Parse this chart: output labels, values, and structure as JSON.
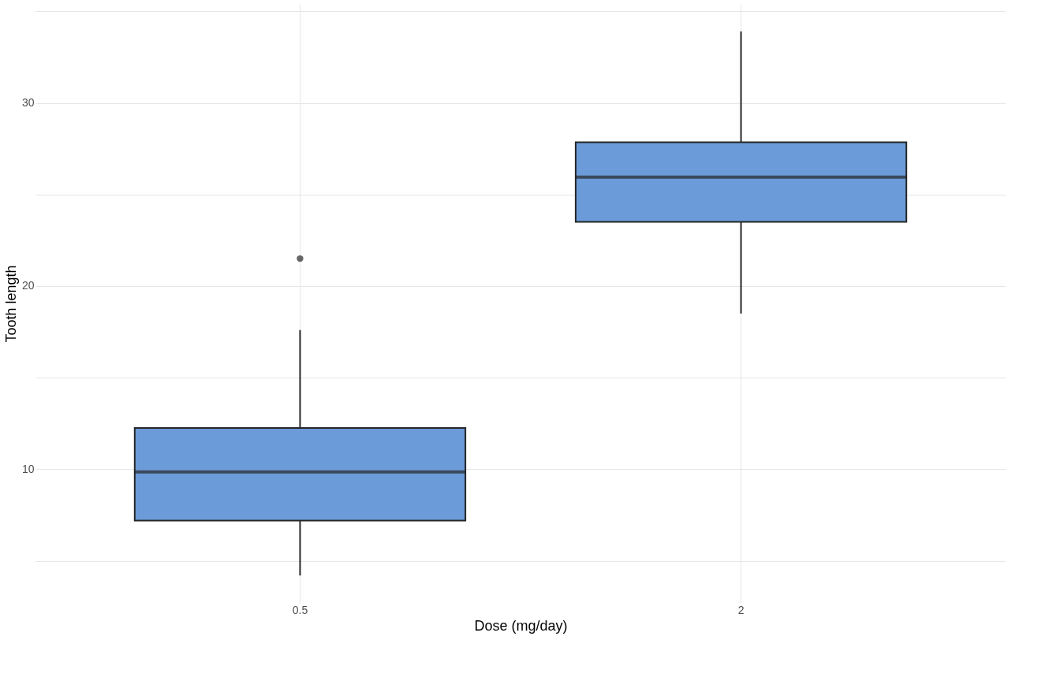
{
  "chart_data": {
    "type": "box",
    "xlabel": "Dose (mg/day)",
    "ylabel": "Tooth length",
    "categories": [
      "0.5",
      "2"
    ],
    "boxes": [
      {
        "low": 4.2,
        "q1": 7.2,
        "median": 9.85,
        "q3": 12.25,
        "high": 17.6,
        "outliers": [
          21.5
        ]
      },
      {
        "low": 18.5,
        "q1": 23.5,
        "median": 25.95,
        "q3": 27.85,
        "high": 33.9
      }
    ],
    "color": "#6b9bd8",
    "ylim": [
      2.7,
      35.4
    ],
    "yticks": [
      {
        "value": 5,
        "label": null
      },
      10,
      {
        "value": 15,
        "label": null
      },
      20,
      {
        "value": 25,
        "label": null
      },
      30,
      {
        "value": 35,
        "label": null
      }
    ],
    "grid": true
  }
}
